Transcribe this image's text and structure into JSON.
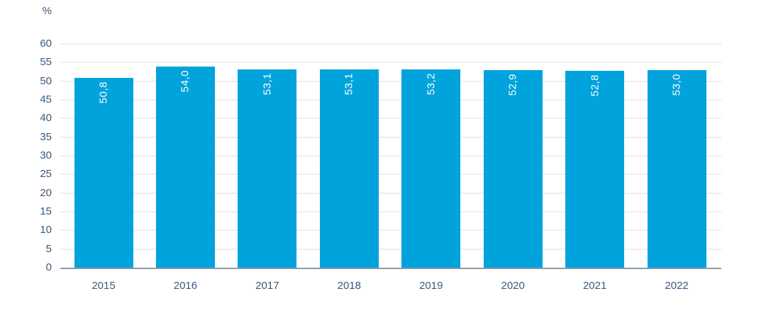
{
  "chart_data": {
    "type": "bar",
    "title": "",
    "unit_label": "%",
    "categories": [
      "2015",
      "2016",
      "2017",
      "2018",
      "2019",
      "2020",
      "2021",
      "2022"
    ],
    "values": [
      50.8,
      54.0,
      53.1,
      53.1,
      53.2,
      52.9,
      52.8,
      53.0
    ],
    "value_labels": [
      "50,8",
      "54,0",
      "53,1",
      "53,1",
      "53,2",
      "52,9",
      "52,8",
      "53,0"
    ],
    "xlabel": "",
    "ylabel": "%",
    "ylim": [
      0,
      60
    ],
    "yticks": [
      60,
      55,
      50,
      45,
      40,
      35,
      30,
      25,
      20,
      15,
      10,
      5,
      0
    ],
    "grid": true,
    "legend": "none",
    "colors": {
      "bar": "#00a3dc",
      "bar_label": "#fdfeff",
      "axis_text": "#3a5a7c",
      "gridline": "#eceef2",
      "baseline": "#8b99aa",
      "background": "#ffffff"
    }
  }
}
